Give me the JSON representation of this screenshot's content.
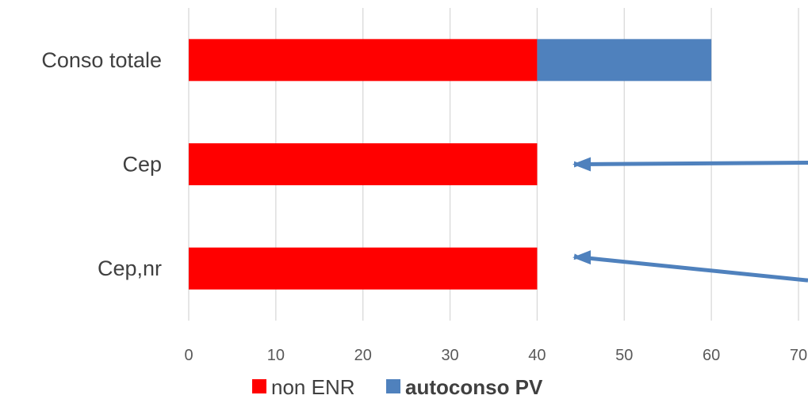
{
  "chart_data": {
    "type": "bar",
    "orientation": "horizontal",
    "stacked": true,
    "title": "",
    "xlabel": "",
    "ylabel": "",
    "categories": [
      "Conso totale",
      "Cep",
      "Cep,nr"
    ],
    "series": [
      {
        "name": "non ENR",
        "values": [
          40,
          40,
          40
        ],
        "color": "#ff0000"
      },
      {
        "name": "autoconso PV",
        "values": [
          20,
          0,
          0
        ],
        "color": "#4f81bd",
        "legend_bold": true
      }
    ],
    "xlim": [
      0,
      70
    ],
    "xticks": [
      "0",
      "10",
      "20",
      "30",
      "40",
      "50",
      "60",
      "70"
    ],
    "grid": true,
    "legend_position": "bottom",
    "annotations": [
      {
        "type": "arrow",
        "points_to": "Cep",
        "color": "#4f81bd"
      },
      {
        "type": "arrow",
        "points_to": "Cep,nr",
        "color": "#4f81bd"
      }
    ]
  }
}
